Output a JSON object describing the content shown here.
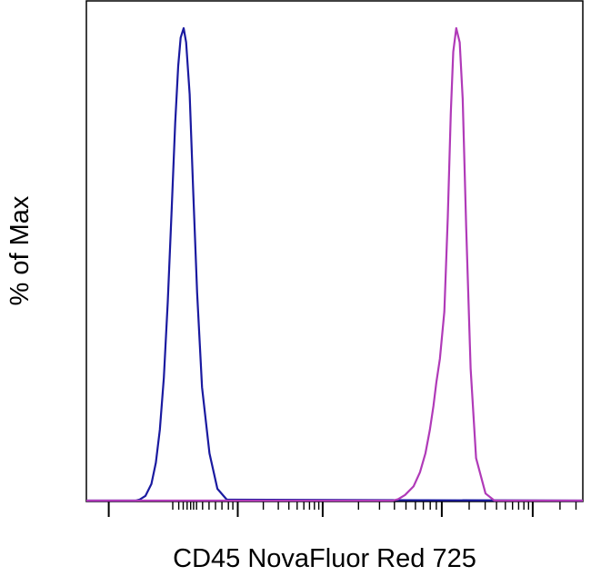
{
  "chart_data": {
    "type": "line",
    "title": "",
    "xlabel": "CD45 NovaFluor Red 725",
    "ylabel": "% of Max",
    "xlim": [
      0,
      100
    ],
    "ylim": [
      0,
      100
    ],
    "grid": false,
    "legend": "none",
    "series": [
      {
        "color": "#1a1aa0",
        "x": [
          10,
          10.7,
          11.9,
          13.1,
          14.0,
          14.8,
          15.6,
          16.4,
          17.2,
          17.9,
          18.5,
          19.0,
          19.6,
          20.1,
          20.8,
          21.5,
          22.3,
          23.3,
          24.8,
          26.4,
          28.3
        ],
        "y": [
          0,
          0.2,
          1.0,
          3.5,
          8,
          15,
          26,
          42,
          62,
          80,
          92,
          98,
          100,
          97,
          86,
          66,
          44,
          24,
          10,
          2.5,
          0.2
        ]
      },
      {
        "color": "#b03ab8",
        "x": [
          61.8,
          62.8,
          64.2,
          65.9,
          67.2,
          68.3,
          69.2,
          69.9,
          70.5,
          71.2,
          72.1,
          72.8,
          73.4,
          73.9,
          74.5,
          75.2,
          75.8,
          76.5,
          77.4,
          78.5,
          80.4,
          82.2
        ],
        "y": [
          0,
          0.3,
          1.2,
          3,
          6,
          10,
          15,
          20,
          25,
          30,
          40,
          60,
          82,
          95,
          100,
          97,
          85,
          58,
          28,
          9,
          1.5,
          0
        ]
      }
    ]
  }
}
